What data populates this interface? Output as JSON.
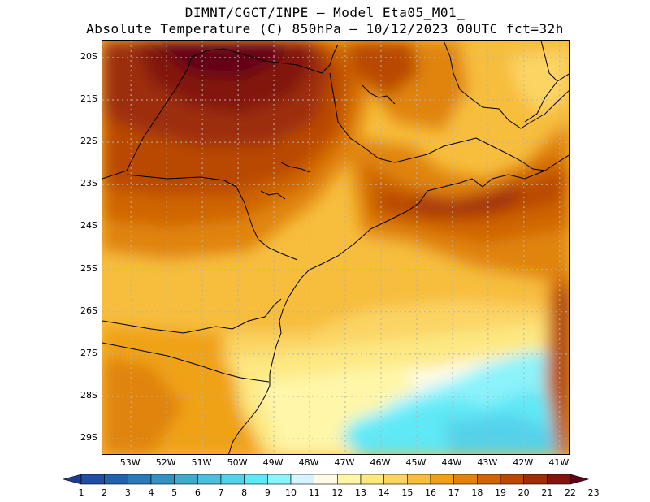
{
  "header": {
    "line1": "DIMNT/CGCT/INPE –  Model Eta05_M01_",
    "line2": "Absolute Temperature (C) 850hPa –  10/12/2023 00UTC fct=32h"
  },
  "map": {
    "lat_labels": [
      "20S",
      "21S",
      "22S",
      "23S",
      "24S",
      "25S",
      "26S",
      "27S",
      "28S",
      "29S"
    ],
    "lon_labels": [
      "53W",
      "52W",
      "51W",
      "50W",
      "49W",
      "48W",
      "47W",
      "46W",
      "45W",
      "44W",
      "43W",
      "42W",
      "41W"
    ],
    "lon_range": [
      -53.8,
      -40.7
    ],
    "lat_range": [
      -29.4,
      -19.6
    ],
    "gridline_color": "#b4b4b4",
    "boundary_color": "#000000"
  },
  "colorbar": {
    "labels": [
      "1",
      "2",
      "3",
      "4",
      "5",
      "6",
      "7",
      "8",
      "9",
      "10",
      "11",
      "12",
      "13",
      "14",
      "15",
      "16",
      "17",
      "18",
      "19",
      "20",
      "21",
      "22",
      "23"
    ],
    "colors": [
      "#1d3c8f",
      "#1e4fa3",
      "#2063ad",
      "#2a7ab8",
      "#3591c2",
      "#44a8cc",
      "#4fbedd",
      "#55d2ea",
      "#5ee8f6",
      "#8cf3fb",
      "#d6f4ff",
      "#fffbe6",
      "#fff6a8",
      "#fde882",
      "#fbd463",
      "#f7bd3c",
      "#f0a213",
      "#e0840d",
      "#cf6506",
      "#b94a05",
      "#9d2f08",
      "#82160f",
      "#630018"
    ]
  }
}
